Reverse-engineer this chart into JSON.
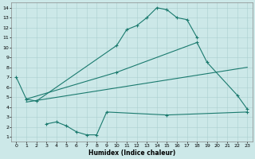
{
  "bg_color": "#cce8e8",
  "grid_color": "#aacfcf",
  "line_color": "#1a7a6e",
  "xlabel": "Humidex (Indice chaleur)",
  "xlim": [
    -0.5,
    23.5
  ],
  "ylim": [
    0.5,
    14.5
  ],
  "xticks": [
    0,
    1,
    2,
    3,
    4,
    5,
    6,
    7,
    8,
    9,
    10,
    11,
    12,
    13,
    14,
    15,
    16,
    17,
    18,
    19,
    20,
    21,
    22,
    23
  ],
  "yticks": [
    1,
    2,
    3,
    4,
    5,
    6,
    7,
    8,
    9,
    10,
    11,
    12,
    13,
    14
  ],
  "series1_x": [
    0,
    1,
    2,
    10,
    11,
    12,
    13,
    14,
    15,
    16,
    17,
    18
  ],
  "series1_y": [
    7.0,
    4.8,
    4.6,
    10.2,
    11.8,
    12.2,
    13.0,
    14.0,
    13.8,
    13.0,
    12.8,
    11.0
  ],
  "series2_x": [
    1,
    10,
    18,
    19,
    22,
    23
  ],
  "series2_y": [
    4.8,
    7.5,
    10.5,
    8.5,
    5.2,
    3.8
  ],
  "series3_x": [
    1,
    23
  ],
  "series3_y": [
    4.5,
    8.0
  ],
  "series4_x": [
    3,
    4,
    5,
    6,
    7,
    8,
    9,
    15,
    23
  ],
  "series4_y": [
    2.3,
    2.5,
    2.1,
    1.5,
    1.2,
    1.2,
    3.5,
    3.2,
    3.5
  ]
}
